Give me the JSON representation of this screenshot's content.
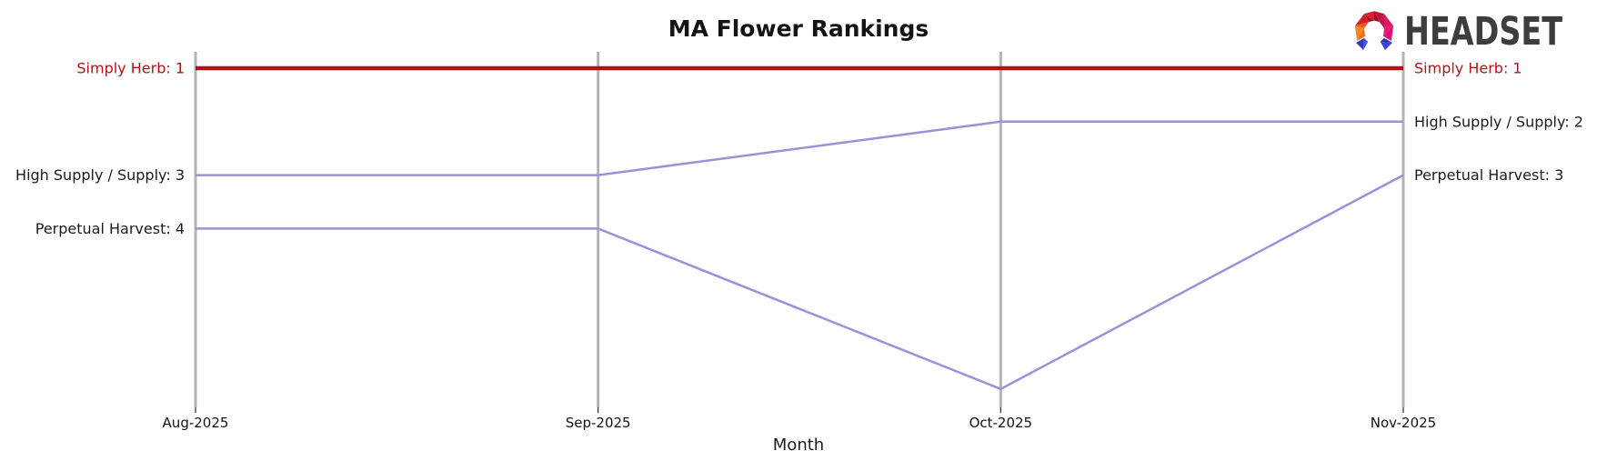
{
  "header": {
    "title": "MA Flower Rankings"
  },
  "logo": {
    "text": "HEADSET"
  },
  "chart_data": {
    "type": "line",
    "subtype": "bump-ranking",
    "title": "MA Flower Rankings",
    "xlabel": "Month",
    "categories": [
      "Aug-2025",
      "Sep-2025",
      "Oct-2025",
      "Nov-2025"
    ],
    "rank_range": [
      1,
      7
    ],
    "grid": "vertical-gridlines-only",
    "legend": "none (inline end labels)",
    "style": {
      "gridline_color": "#b4b4b4",
      "tick_color": "#262626",
      "tick_label_color": "#111111",
      "highlight_color": "#b11218",
      "default_line_color": "#9d90da"
    },
    "series": [
      {
        "name": "Simply Herb",
        "ranks": [
          1,
          1,
          1,
          1
        ],
        "color": "#b11218",
        "line_width": 4.5,
        "left_label": "Simply Herb: 1",
        "right_label": "Simply Herb: 1",
        "label_color": "#b11218"
      },
      {
        "name": "High Supply / Supply",
        "ranks": [
          3,
          3,
          2,
          2
        ],
        "color": "#9d90da",
        "line_width": 2.5,
        "left_label": "High Supply / Supply: 3",
        "right_label": "High Supply / Supply: 2",
        "label_color": "#1a1a1a"
      },
      {
        "name": "Perpetual Harvest",
        "ranks": [
          4,
          4,
          7,
          3
        ],
        "color": "#9d90da",
        "line_width": 2.5,
        "left_label": "Perpetual Harvest: 4",
        "right_label": "Perpetual Harvest: 3",
        "label_color": "#1a1a1a"
      }
    ]
  }
}
